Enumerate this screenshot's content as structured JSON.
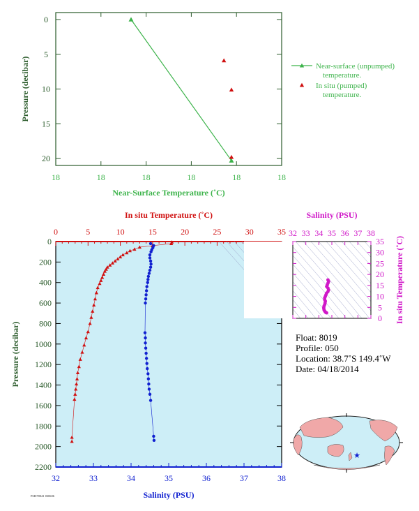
{
  "colors": {
    "green": "#3cb34a",
    "red": "#d01010",
    "blue": "#1020d0",
    "magenta": "#d018c8",
    "panel_bg": "#cdeef7",
    "axis_dark": "#2a5a2a"
  },
  "chart_data": [
    {
      "type": "scatter",
      "title": "",
      "xlabel": "Near-Surface Temperature (˚C)",
      "ylabel": "Pressure (decibar)",
      "xticks": [
        "18",
        "18",
        "18",
        "18",
        "18",
        "18"
      ],
      "yticks": [
        "0",
        "5",
        "10",
        "15",
        "20"
      ],
      "ylim": [
        0,
        22
      ],
      "y_inverted": true,
      "grid": false,
      "legend_position": "right",
      "series": [
        {
          "name": "Near-surface (unpumped) temperature.",
          "marker": "triangle-line",
          "points": [
            {
              "x": 17.98,
              "y": 0.0
            },
            {
              "x": 18.02,
              "y": 20.3
            }
          ]
        },
        {
          "name": "In situ (pumped) temperature.",
          "marker": "triangle",
          "points": [
            {
              "x": 18.017,
              "y": 5.9
            },
            {
              "x": 18.02,
              "y": 10.1
            },
            {
              "x": 18.02,
              "y": 19.8
            }
          ]
        }
      ]
    },
    {
      "type": "line",
      "title": "",
      "ylabel": "Pressure (decibar)",
      "top_xlabel": "In situ Temperature (˚C)",
      "bottom_xlabel": "Salinity (PSU)",
      "ylim": [
        0,
        2200
      ],
      "y_inverted": true,
      "temp_lim": [
        0,
        35
      ],
      "sal_lim": [
        32,
        38
      ],
      "yticks": [
        "0",
        "200",
        "400",
        "600",
        "800",
        "1000",
        "1200",
        "1400",
        "1600",
        "1800",
        "2000",
        "2200"
      ],
      "temp_ticks": [
        "0",
        "5",
        "10",
        "15",
        "20",
        "25",
        "30",
        "35"
      ],
      "sal_ticks": [
        "32",
        "33",
        "34",
        "35",
        "36",
        "37",
        "38"
      ],
      "series": [
        {
          "name": "temperature",
          "points": [
            [
              18.0,
              5
            ],
            [
              17.9,
              20
            ],
            [
              15.0,
              40
            ],
            [
              13.0,
              55
            ],
            [
              12.2,
              75
            ],
            [
              11.5,
              90
            ],
            [
              11.0,
              110
            ],
            [
              10.4,
              130
            ],
            [
              10.0,
              150
            ],
            [
              9.6,
              170
            ],
            [
              9.2,
              190
            ],
            [
              8.8,
              210
            ],
            [
              8.4,
              230
            ],
            [
              8.0,
              250
            ],
            [
              7.8,
              270
            ],
            [
              7.6,
              290
            ],
            [
              7.4,
              320
            ],
            [
              7.2,
              350
            ],
            [
              7.0,
              380
            ],
            [
              6.8,
              410
            ],
            [
              6.5,
              450
            ],
            [
              6.3,
              500
            ],
            [
              6.1,
              560
            ],
            [
              5.9,
              620
            ],
            [
              5.7,
              680
            ],
            [
              5.5,
              740
            ],
            [
              5.3,
              800
            ],
            [
              5.0,
              880
            ],
            [
              4.7,
              940
            ],
            [
              4.4,
              1010
            ],
            [
              4.1,
              1080
            ],
            [
              3.8,
              1150
            ],
            [
              3.6,
              1220
            ],
            [
              3.4,
              1280
            ],
            [
              3.3,
              1340
            ],
            [
              3.2,
              1390
            ],
            [
              3.1,
              1440
            ],
            [
              3.0,
              1490
            ],
            [
              2.9,
              1540
            ],
            [
              2.5,
              1910
            ],
            [
              2.5,
              1950
            ]
          ]
        },
        {
          "name": "salinity",
          "points": [
            [
              34.52,
              20
            ],
            [
              34.6,
              40
            ],
            [
              34.58,
              60
            ],
            [
              34.55,
              80
            ],
            [
              34.53,
              100
            ],
            [
              34.5,
              130
            ],
            [
              34.5,
              160
            ],
            [
              34.52,
              190
            ],
            [
              34.53,
              220
            ],
            [
              34.52,
              250
            ],
            [
              34.5,
              280
            ],
            [
              34.48,
              310
            ],
            [
              34.46,
              340
            ],
            [
              34.45,
              370
            ],
            [
              34.44,
              400
            ],
            [
              34.42,
              440
            ],
            [
              34.41,
              480
            ],
            [
              34.4,
              520
            ],
            [
              34.39,
              560
            ],
            [
              34.38,
              600
            ],
            [
              34.37,
              890
            ],
            [
              34.38,
              940
            ],
            [
              34.38,
              990
            ],
            [
              34.39,
              1040
            ],
            [
              34.4,
              1090
            ],
            [
              34.41,
              1140
            ],
            [
              34.42,
              1190
            ],
            [
              34.43,
              1240
            ],
            [
              34.45,
              1290
            ],
            [
              34.46,
              1340
            ],
            [
              34.47,
              1390
            ],
            [
              34.48,
              1440
            ],
            [
              34.5,
              1490
            ],
            [
              34.52,
              1550
            ],
            [
              34.6,
              1900
            ],
            [
              34.61,
              1940
            ]
          ]
        }
      ]
    },
    {
      "type": "scatter",
      "title": "Salinity (PSU)",
      "ylabel": "In situ Temperature (˚C)",
      "xticks": [
        "32",
        "33",
        "34",
        "35",
        "36",
        "37",
        "38"
      ],
      "yticks": [
        "0",
        "5",
        "10",
        "15",
        "20",
        "25",
        "30",
        "35"
      ],
      "xlim": [
        32,
        38
      ],
      "ylim": [
        0,
        35
      ],
      "points": [
        [
          34.7,
          17.5
        ],
        [
          34.75,
          16.8
        ],
        [
          34.7,
          16.0
        ],
        [
          34.65,
          15.2
        ],
        [
          34.6,
          14.5
        ],
        [
          34.7,
          13.8
        ],
        [
          34.75,
          13.0
        ],
        [
          34.7,
          12.2
        ],
        [
          34.6,
          11.5
        ],
        [
          34.55,
          10.8
        ],
        [
          34.5,
          10.0
        ],
        [
          34.45,
          9.3
        ],
        [
          34.45,
          8.5
        ],
        [
          34.5,
          7.8
        ],
        [
          34.48,
          7.0
        ],
        [
          34.45,
          6.3
        ],
        [
          34.4,
          5.6
        ],
        [
          34.38,
          5.0
        ],
        [
          34.38,
          4.4
        ],
        [
          34.4,
          3.8
        ],
        [
          34.45,
          3.3
        ],
        [
          34.5,
          2.9
        ],
        [
          34.55,
          2.6
        ],
        [
          34.6,
          2.5
        ]
      ]
    }
  ],
  "info": {
    "float": "Float:  8019",
    "profile": "Profile:  050",
    "location": "Location:  38.7˚S  149.4˚W",
    "date": "Date:  04/18/2014"
  },
  "footer_text": "FSI070041 030606"
}
